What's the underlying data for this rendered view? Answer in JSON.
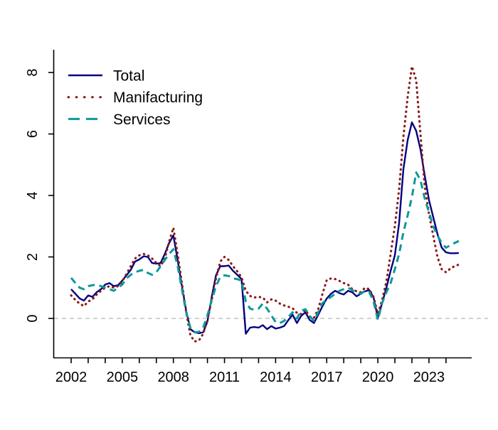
{
  "figure": {
    "background": "#ffffff",
    "axis_color": "#000000",
    "zero_line_color": "#c3c3c3"
  },
  "legend": {
    "position": "top-left",
    "items": [
      {
        "label": "Total",
        "color": "#000080",
        "style": "solid"
      },
      {
        "label": "Manifacturing",
        "color": "#8B1A1A",
        "style": "dotted"
      },
      {
        "label": "Services",
        "color": "#0E9898",
        "style": "dashed"
      }
    ]
  },
  "chart_data": {
    "type": "line",
    "title": "",
    "xlabel": "",
    "ylabel": "",
    "grid": false,
    "zero_line": true,
    "x_start": 2002.0,
    "x_step": 0.25,
    "xlim": [
      2001.0,
      2025.5
    ],
    "ylim": [
      -1.3,
      8.75
    ],
    "x_minor_tick_years": [
      2002,
      2003,
      2004,
      2005,
      2006,
      2007,
      2008,
      2009,
      2010,
      2011,
      2012,
      2013,
      2014,
      2015,
      2016,
      2017,
      2018,
      2019,
      2020,
      2021,
      2022,
      2023,
      2024
    ],
    "x_tick_label_years": [
      2002,
      2005,
      2008,
      2011,
      2014,
      2017,
      2020,
      2023
    ],
    "x_tick_labels": [
      "2002",
      "2005",
      "2008",
      "2011",
      "2014",
      "2017",
      "2020",
      "2023"
    ],
    "y_ticks": [
      0,
      2,
      4,
      6,
      8
    ],
    "y_tick_labels": [
      "0",
      "2",
      "4",
      "6",
      "8"
    ],
    "legend_position": "top-left",
    "series": [
      {
        "name": "Total",
        "color": "#000080",
        "style": "solid",
        "values": [
          0.95,
          0.8,
          0.65,
          0.58,
          0.75,
          0.7,
          0.85,
          0.95,
          1.1,
          1.15,
          1.05,
          1.08,
          1.23,
          1.4,
          1.58,
          1.85,
          1.92,
          2.02,
          2.0,
          1.8,
          1.78,
          1.8,
          2.1,
          2.45,
          2.7,
          1.9,
          1.05,
          0.25,
          -0.35,
          -0.45,
          -0.48,
          -0.45,
          -0.1,
          0.7,
          1.4,
          1.7,
          1.7,
          1.72,
          1.55,
          1.42,
          1.28,
          -0.5,
          -0.3,
          -0.28,
          -0.3,
          -0.22,
          -0.35,
          -0.25,
          -0.33,
          -0.3,
          -0.25,
          -0.05,
          0.12,
          -0.15,
          0.08,
          0.2,
          -0.05,
          -0.15,
          0.12,
          0.4,
          0.65,
          0.8,
          0.9,
          0.82,
          0.78,
          0.9,
          0.85,
          0.72,
          0.8,
          0.88,
          0.92,
          0.68,
          0.02,
          0.5,
          1.0,
          1.55,
          2.05,
          3.1,
          4.85,
          5.8,
          6.38,
          6.1,
          5.5,
          4.65,
          3.85,
          3.3,
          2.75,
          2.3,
          2.15,
          2.12,
          2.12,
          2.13
        ]
      },
      {
        "name": "Manifacturing",
        "color": "#8B1A1A",
        "style": "dotted",
        "values": [
          0.75,
          0.6,
          0.48,
          0.4,
          0.55,
          0.62,
          0.78,
          0.9,
          1.0,
          1.05,
          1.0,
          1.05,
          1.2,
          1.45,
          1.7,
          1.95,
          2.05,
          2.1,
          2.05,
          1.95,
          1.8,
          1.7,
          1.95,
          2.5,
          2.95,
          2.1,
          1.15,
          0.2,
          -0.55,
          -0.75,
          -0.72,
          -0.5,
          -0.05,
          0.6,
          1.3,
          1.85,
          2.0,
          1.9,
          1.7,
          1.53,
          1.34,
          0.9,
          0.73,
          0.68,
          0.7,
          0.68,
          0.52,
          0.62,
          0.58,
          0.48,
          0.42,
          0.38,
          0.33,
          0.18,
          0.14,
          0.28,
          0.05,
          0.02,
          0.3,
          0.8,
          1.25,
          1.3,
          1.28,
          1.22,
          1.15,
          1.1,
          0.95,
          0.88,
          0.85,
          1.0,
          0.95,
          0.7,
          0.15,
          0.6,
          1.2,
          2.1,
          3.0,
          4.2,
          5.9,
          7.2,
          8.2,
          7.75,
          6.0,
          4.3,
          3.4,
          2.7,
          2.0,
          1.6,
          1.5,
          1.62,
          1.7,
          1.75
        ]
      },
      {
        "name": "Services",
        "color": "#0E9898",
        "style": "dashed",
        "values": [
          1.32,
          1.15,
          1.0,
          0.95,
          1.05,
          1.08,
          1.1,
          1.05,
          1.0,
          0.95,
          0.9,
          1.0,
          1.1,
          1.3,
          1.42,
          1.5,
          1.55,
          1.58,
          1.48,
          1.42,
          1.5,
          1.7,
          1.9,
          2.1,
          2.25,
          1.7,
          0.95,
          0.2,
          -0.3,
          -0.45,
          -0.44,
          -0.3,
          0.1,
          0.6,
          1.05,
          1.35,
          1.4,
          1.38,
          1.3,
          1.28,
          1.22,
          0.55,
          0.32,
          0.28,
          0.32,
          0.48,
          0.32,
          0.1,
          -0.12,
          -0.15,
          -0.08,
          0.05,
          0.2,
          0.0,
          0.25,
          0.3,
          0.08,
          -0.08,
          0.2,
          0.5,
          0.6,
          0.7,
          0.8,
          0.9,
          0.95,
          1.0,
          0.92,
          0.85,
          0.8,
          0.9,
          0.85,
          0.55,
          -0.05,
          0.5,
          0.85,
          1.15,
          1.6,
          2.1,
          2.8,
          3.35,
          3.95,
          4.75,
          4.5,
          3.9,
          3.45,
          3.0,
          2.7,
          2.45,
          2.3,
          2.38,
          2.45,
          2.52
        ]
      }
    ]
  }
}
